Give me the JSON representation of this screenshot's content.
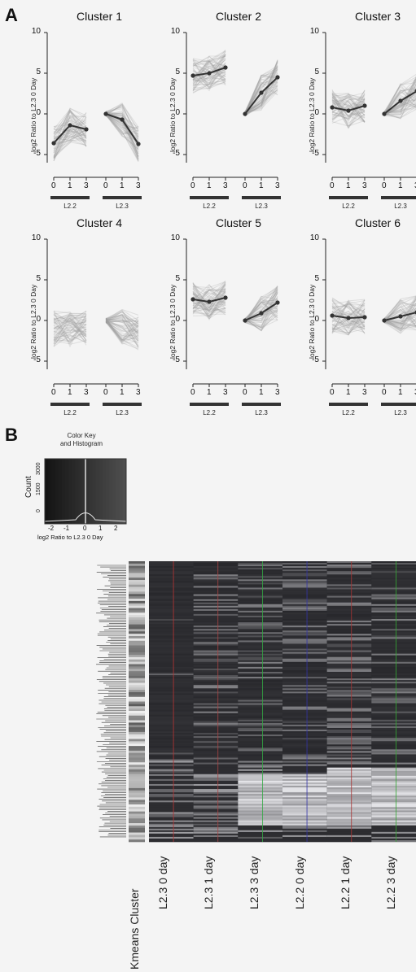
{
  "panel_a": {
    "label": "A"
  },
  "panel_b": {
    "label": "B"
  },
  "ylabel": "log2 Ratio to L2.3 0 Day",
  "group_labels": [
    "L2.2",
    "L2.3"
  ],
  "x_ticks": [
    "0",
    "1",
    "3",
    "0",
    "1",
    "3"
  ],
  "y_ticks": [
    "10",
    "5",
    "0",
    "-5"
  ],
  "clusters": [
    {
      "title": "Cluster 1",
      "l22": [
        -3.6,
        -1.4,
        -1.9
      ],
      "l23": [
        0,
        -0.7,
        -3.7
      ]
    },
    {
      "title": "Cluster 2",
      "l22": [
        4.7,
        5.0,
        5.7
      ],
      "l23": [
        0,
        2.6,
        4.5
      ]
    },
    {
      "title": "Cluster 3",
      "l22": [
        0.8,
        0.4,
        1.0
      ],
      "l23": [
        0,
        1.6,
        2.8
      ]
    },
    {
      "title": "Cluster 4",
      "l22": [],
      "l23": []
    },
    {
      "title": "Cluster 5",
      "l22": [
        2.6,
        2.3,
        2.8
      ],
      "l23": [
        0,
        0.9,
        2.2
      ]
    },
    {
      "title": "Cluster 6",
      "l22": [
        0.6,
        0.3,
        0.4
      ],
      "l23": [
        0,
        0.5,
        1.0
      ]
    }
  ],
  "color_key": {
    "title_line1": "Color Key",
    "title_line2": "and Histogram",
    "ylabel": "Count",
    "yticks": [
      "3000",
      "1500",
      "0"
    ],
    "xticks": [
      "-2",
      "-1",
      "0",
      "1",
      "2"
    ],
    "xlabel": "log2 Ratio to L2.3 0 Day"
  },
  "heatmap_columns": [
    "Kmeans Cluster",
    "L2.3 0 day",
    "L2.3 1 day",
    "L2.3 3 day",
    "L2.2 0 day",
    "L2.2 1 day",
    "L2.2 3 day"
  ],
  "chart_data": [
    {
      "type": "line",
      "title": "Cluster 1",
      "ylabel": "log2 Ratio to L2.3 0 Day",
      "x": [
        0,
        1,
        3
      ],
      "ylim": [
        -6,
        10
      ],
      "series": [
        {
          "name": "L2.2",
          "values": [
            -3.6,
            -1.4,
            -1.9
          ]
        },
        {
          "name": "L2.3",
          "values": [
            0,
            -0.7,
            -3.7
          ]
        }
      ]
    },
    {
      "type": "line",
      "title": "Cluster 2",
      "ylabel": "log2 Ratio to L2.3 0 Day",
      "x": [
        0,
        1,
        3
      ],
      "ylim": [
        -6,
        10
      ],
      "series": [
        {
          "name": "L2.2",
          "values": [
            4.7,
            5.0,
            5.7
          ]
        },
        {
          "name": "L2.3",
          "values": [
            0,
            2.6,
            4.5
          ]
        }
      ]
    },
    {
      "type": "line",
      "title": "Cluster 3",
      "ylabel": "log2 Ratio to L2.3 0 Day",
      "x": [
        0,
        1,
        3
      ],
      "ylim": [
        -6,
        10
      ],
      "series": [
        {
          "name": "L2.2",
          "values": [
            0.8,
            0.4,
            1.0
          ]
        },
        {
          "name": "L2.3",
          "values": [
            0,
            1.6,
            2.8
          ]
        }
      ]
    },
    {
      "type": "line",
      "title": "Cluster 4",
      "ylabel": "log2 Ratio to L2.3 0 Day",
      "x": [
        0,
        1,
        3
      ],
      "ylim": [
        -6,
        10
      ],
      "series": []
    },
    {
      "type": "line",
      "title": "Cluster 5",
      "ylabel": "log2 Ratio to L2.3 0 Day",
      "x": [
        0,
        1,
        3
      ],
      "ylim": [
        -6,
        10
      ],
      "series": [
        {
          "name": "L2.2",
          "values": [
            2.6,
            2.3,
            2.8
          ]
        },
        {
          "name": "L2.3",
          "values": [
            0,
            0.9,
            2.2
          ]
        }
      ]
    },
    {
      "type": "line",
      "title": "Cluster 6",
      "ylabel": "log2 Ratio to L2.3 0 Day",
      "x": [
        0,
        1,
        3
      ],
      "ylim": [
        -6,
        10
      ],
      "series": [
        {
          "name": "L2.2",
          "values": [
            0.6,
            0.3,
            0.4
          ]
        },
        {
          "name": "L2.3",
          "values": [
            0,
            0.5,
            1.0
          ]
        }
      ]
    },
    {
      "type": "heatmap",
      "columns": [
        "L2.3 0 day",
        "L2.3 1 day",
        "L2.3 3 day",
        "L2.2 0 day",
        "L2.2 1 day",
        "L2.2 3 day"
      ],
      "color_key_range": [
        -2,
        2
      ],
      "xlabel": "log2 Ratio to L2.3 0 Day"
    }
  ]
}
